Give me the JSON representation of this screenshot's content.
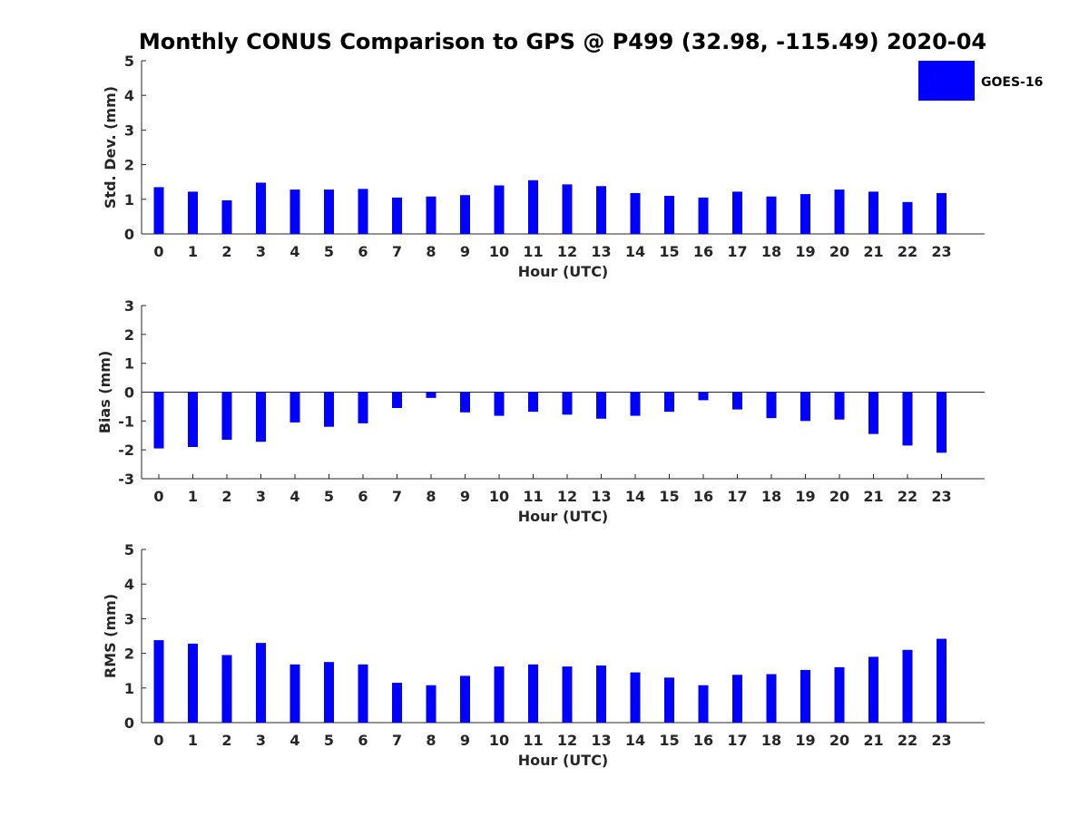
{
  "title": "Monthly CONUS Comparison to GPS @ P499 (32.98, -115.49) 2020-04",
  "legend": {
    "label": "GOES-16",
    "color": "#0000ff",
    "placement": "top-right"
  },
  "chart_data": [
    {
      "type": "bar",
      "xlabel": "Hour (UTC)",
      "ylabel": "Std. Dev. (mm)",
      "ylim": [
        0,
        5
      ],
      "yticks": [
        0,
        1,
        2,
        3,
        4,
        5
      ],
      "categories": [
        "0",
        "1",
        "2",
        "3",
        "4",
        "5",
        "6",
        "7",
        "8",
        "9",
        "10",
        "11",
        "12",
        "13",
        "14",
        "15",
        "16",
        "17",
        "18",
        "19",
        "20",
        "21",
        "22",
        "23"
      ],
      "series": [
        {
          "name": "GOES-16",
          "color": "#0000ff",
          "values": [
            1.35,
            1.22,
            0.97,
            1.48,
            1.28,
            1.28,
            1.3,
            1.05,
            1.08,
            1.12,
            1.4,
            1.55,
            1.43,
            1.38,
            1.18,
            1.1,
            1.05,
            1.22,
            1.08,
            1.15,
            1.28,
            1.22,
            0.92,
            1.18
          ]
        }
      ]
    },
    {
      "type": "bar",
      "xlabel": "Hour (UTC)",
      "ylabel": "Bias (mm)",
      "ylim": [
        -3,
        3
      ],
      "yticks": [
        -3,
        -2,
        -1,
        0,
        1,
        2,
        3
      ],
      "categories": [
        "0",
        "1",
        "2",
        "3",
        "4",
        "5",
        "6",
        "7",
        "8",
        "9",
        "10",
        "11",
        "12",
        "13",
        "14",
        "15",
        "16",
        "17",
        "18",
        "19",
        "20",
        "21",
        "22",
        "23"
      ],
      "series": [
        {
          "name": "GOES-16",
          "color": "#0000ff",
          "values": [
            -1.95,
            -1.9,
            -1.65,
            -1.72,
            -1.05,
            -1.2,
            -1.08,
            -0.55,
            -0.2,
            -0.7,
            -0.82,
            -0.68,
            -0.78,
            -0.92,
            -0.82,
            -0.68,
            -0.28,
            -0.6,
            -0.9,
            -1.0,
            -0.95,
            -1.45,
            -1.85,
            -2.1
          ]
        }
      ]
    },
    {
      "type": "bar",
      "xlabel": "Hour (UTC)",
      "ylabel": "RMS (mm)",
      "ylim": [
        0,
        5
      ],
      "yticks": [
        0,
        1,
        2,
        3,
        4,
        5
      ],
      "categories": [
        "0",
        "1",
        "2",
        "3",
        "4",
        "5",
        "6",
        "7",
        "8",
        "9",
        "10",
        "11",
        "12",
        "13",
        "14",
        "15",
        "16",
        "17",
        "18",
        "19",
        "20",
        "21",
        "22",
        "23"
      ],
      "series": [
        {
          "name": "GOES-16",
          "color": "#0000ff",
          "values": [
            2.38,
            2.28,
            1.95,
            2.3,
            1.68,
            1.75,
            1.68,
            1.15,
            1.08,
            1.35,
            1.62,
            1.68,
            1.62,
            1.65,
            1.45,
            1.3,
            1.08,
            1.38,
            1.4,
            1.52,
            1.6,
            1.9,
            2.1,
            2.42
          ]
        }
      ]
    }
  ]
}
